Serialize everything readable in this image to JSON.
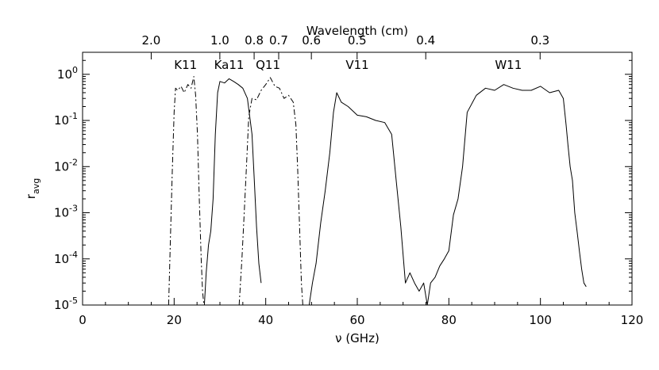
{
  "chart_data": {
    "type": "line",
    "title": "",
    "xlabel": "ν (GHz)",
    "ylabel": "r",
    "ylabel_subscript": "avg",
    "top_axis_label": "Wavelength (cm)",
    "xlim": [
      0,
      120
    ],
    "ylim": [
      1e-05,
      3
    ],
    "yscale": "log",
    "grid": false,
    "x_ticks": [
      0,
      20,
      40,
      60,
      80,
      100,
      120
    ],
    "x_tick_labels": [
      "0",
      "20",
      "40",
      "60",
      "80",
      "100",
      "120"
    ],
    "y_ticks": [
      1e-05,
      0.0001,
      0.001,
      0.01,
      0.1,
      1
    ],
    "y_tick_labels": [
      {
        "base": "10",
        "exp": "-5"
      },
      {
        "base": "10",
        "exp": "-4"
      },
      {
        "base": "10",
        "exp": "-3"
      },
      {
        "base": "10",
        "exp": "-2"
      },
      {
        "base": "10",
        "exp": "-1"
      },
      {
        "base": "10",
        "exp": "0"
      }
    ],
    "top_ticks": [
      {
        "label": "2.0",
        "freq_ghz": 14.99
      },
      {
        "label": "1.0",
        "freq_ghz": 29.98
      },
      {
        "label": "0.8",
        "freq_ghz": 37.47
      },
      {
        "label": "0.7",
        "freq_ghz": 42.83
      },
      {
        "label": "0.6",
        "freq_ghz": 49.97
      },
      {
        "label": "0.5",
        "freq_ghz": 59.96
      },
      {
        "label": "0.4",
        "freq_ghz": 74.95
      },
      {
        "label": "0.3",
        "freq_ghz": 99.93
      }
    ],
    "annotations": [
      {
        "text": "K11",
        "x": 22.5,
        "y": 1.3
      },
      {
        "text": "Ka11",
        "x": 32.0,
        "y": 1.3
      },
      {
        "text": "Q11",
        "x": 40.5,
        "y": 1.3
      },
      {
        "text": "V11",
        "x": 60.0,
        "y": 1.3
      },
      {
        "text": "W11",
        "x": 93.0,
        "y": 1.3
      }
    ],
    "series": [
      {
        "dash": "dashdot",
        "x": [
          18.8,
          19.2,
          19.6,
          20.0,
          20.3,
          20.8,
          21.5,
          22.2,
          23.0,
          23.7,
          24.3,
          24.7,
          25.1,
          25.5,
          25.9,
          26.2,
          26.5
        ],
        "y": [
          1e-05,
          0.0003,
          0.008,
          0.15,
          0.5,
          0.45,
          0.55,
          0.4,
          0.6,
          0.5,
          0.9,
          0.35,
          0.05,
          0.002,
          0.0001,
          2e-05,
          1e-05
        ]
      },
      {
        "dash": "solid",
        "x": [
          26.6,
          27.0,
          27.5,
          28.0,
          28.5,
          29.0,
          29.5,
          30.0,
          31.0,
          32.0,
          33.0,
          34.0,
          35.0,
          36.0,
          37.0,
          37.5,
          38.0,
          38.5,
          39.0
        ],
        "y": [
          1e-05,
          5e-05,
          0.0002,
          0.0004,
          0.002,
          0.05,
          0.4,
          0.7,
          0.65,
          0.8,
          0.7,
          0.6,
          0.5,
          0.3,
          0.05,
          0.005,
          0.0005,
          8e-05,
          3e-05
        ]
      },
      {
        "dash": "dashdot",
        "x": [
          34.2,
          34.8,
          35.3,
          35.8,
          36.3,
          37.0,
          38.0,
          39.0,
          40.0,
          41.0,
          42.0,
          43.0,
          44.0,
          45.0,
          46.0,
          46.6,
          47.0,
          47.4,
          47.8,
          48.1
        ],
        "y": [
          1e-05,
          0.0001,
          0.001,
          0.01,
          0.12,
          0.3,
          0.28,
          0.45,
          0.6,
          0.85,
          0.55,
          0.5,
          0.3,
          0.35,
          0.25,
          0.08,
          0.008,
          0.0005,
          3e-05,
          1e-05
        ]
      },
      {
        "dash": "solid",
        "x": [
          49.5,
          50.2,
          51.0,
          52.0,
          53.0,
          54.0,
          54.8,
          55.5,
          56.5,
          58.0,
          60.0,
          62.0,
          64.0,
          66.0,
          67.5,
          68.5,
          69.5,
          70.5,
          71.5,
          72.5,
          73.5,
          74.5,
          75.3,
          76.0,
          77.0,
          78.0,
          79.0,
          80.0,
          81.0,
          82.0,
          83.0,
          84.0,
          86.0,
          88.0,
          90.0,
          92.0,
          94.0,
          96.0,
          98.0,
          100.0,
          102.0,
          104.0,
          105.0,
          105.6,
          106.0,
          106.5,
          107.0,
          107.5,
          108.0,
          108.5,
          109.0,
          109.5,
          110.0
        ],
        "y": [
          1e-05,
          3e-05,
          8e-05,
          0.0006,
          0.003,
          0.02,
          0.15,
          0.4,
          0.25,
          0.2,
          0.13,
          0.12,
          0.1,
          0.09,
          0.05,
          0.005,
          0.0005,
          3e-05,
          5e-05,
          3e-05,
          2e-05,
          3e-05,
          1e-05,
          3e-05,
          4e-05,
          7e-05,
          0.0001,
          0.00015,
          0.0009,
          0.002,
          0.01,
          0.15,
          0.35,
          0.5,
          0.45,
          0.6,
          0.5,
          0.45,
          0.45,
          0.55,
          0.4,
          0.45,
          0.3,
          0.08,
          0.03,
          0.01,
          0.005,
          0.001,
          0.0004,
          0.00015,
          6e-05,
          3e-05,
          2.5e-05
        ]
      }
    ]
  }
}
